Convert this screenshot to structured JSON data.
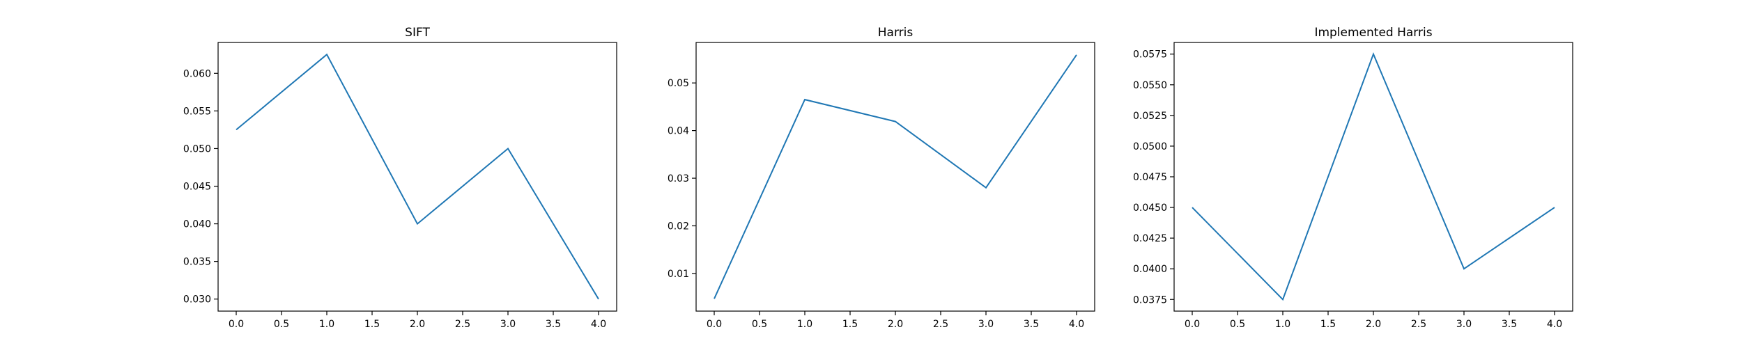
{
  "figure": {
    "line_color": "#1f77b4",
    "axes_color": "#000000",
    "background": "#ffffff"
  },
  "chart_data": [
    {
      "type": "line",
      "title": "SIFT",
      "xlabel": "",
      "ylabel": "",
      "grid": false,
      "xlim": [
        -0.2,
        4.2
      ],
      "ylim": [
        0.0284,
        0.0641
      ],
      "xticks": [
        0.0,
        0.5,
        1.0,
        1.5,
        2.0,
        2.5,
        3.0,
        3.5,
        4.0
      ],
      "xtick_labels": [
        "0.0",
        "0.5",
        "1.0",
        "1.5",
        "2.0",
        "2.5",
        "3.0",
        "3.5",
        "4.0"
      ],
      "yticks": [
        0.03,
        0.035,
        0.04,
        0.045,
        0.05,
        0.055,
        0.06
      ],
      "ytick_labels": [
        "0.030",
        "0.035",
        "0.040",
        "0.045",
        "0.050",
        "0.055",
        "0.060"
      ],
      "series": [
        {
          "x": [
            0,
            1,
            2,
            3,
            4
          ],
          "values": [
            0.0525,
            0.0625,
            0.04,
            0.05,
            0.03
          ]
        }
      ]
    },
    {
      "type": "line",
      "title": "Harris",
      "xlabel": "",
      "ylabel": "",
      "grid": false,
      "xlim": [
        -0.2,
        4.2
      ],
      "ylim": [
        0.0021,
        0.0585
      ],
      "xticks": [
        0.0,
        0.5,
        1.0,
        1.5,
        2.0,
        2.5,
        3.0,
        3.5,
        4.0
      ],
      "xtick_labels": [
        "0.0",
        "0.5",
        "1.0",
        "1.5",
        "2.0",
        "2.5",
        "3.0",
        "3.5",
        "4.0"
      ],
      "yticks": [
        0.01,
        0.02,
        0.03,
        0.04,
        0.05
      ],
      "ytick_labels": [
        "0.01",
        "0.02",
        "0.03",
        "0.04",
        "0.05"
      ],
      "series": [
        {
          "x": [
            0,
            1,
            2,
            3,
            4
          ],
          "values": [
            0.0047,
            0.0465,
            0.0419,
            0.028,
            0.0559
          ]
        }
      ]
    },
    {
      "type": "line",
      "title": "Implemented Harris",
      "xlabel": "",
      "ylabel": "",
      "grid": false,
      "xlim": [
        -0.2,
        4.2
      ],
      "ylim": [
        0.03655,
        0.05845
      ],
      "xticks": [
        0.0,
        0.5,
        1.0,
        1.5,
        2.0,
        2.5,
        3.0,
        3.5,
        4.0
      ],
      "xtick_labels": [
        "0.0",
        "0.5",
        "1.0",
        "1.5",
        "2.0",
        "2.5",
        "3.0",
        "3.5",
        "4.0"
      ],
      "yticks": [
        0.0375,
        0.04,
        0.0425,
        0.045,
        0.0475,
        0.05,
        0.0525,
        0.055,
        0.0575
      ],
      "ytick_labels": [
        "0.0375",
        "0.0400",
        "0.0425",
        "0.0450",
        "0.0475",
        "0.0500",
        "0.0525",
        "0.0550",
        "0.0575"
      ],
      "series": [
        {
          "x": [
            0,
            1,
            2,
            3,
            4
          ],
          "values": [
            0.045,
            0.0375,
            0.0575,
            0.04,
            0.045
          ]
        }
      ]
    }
  ]
}
